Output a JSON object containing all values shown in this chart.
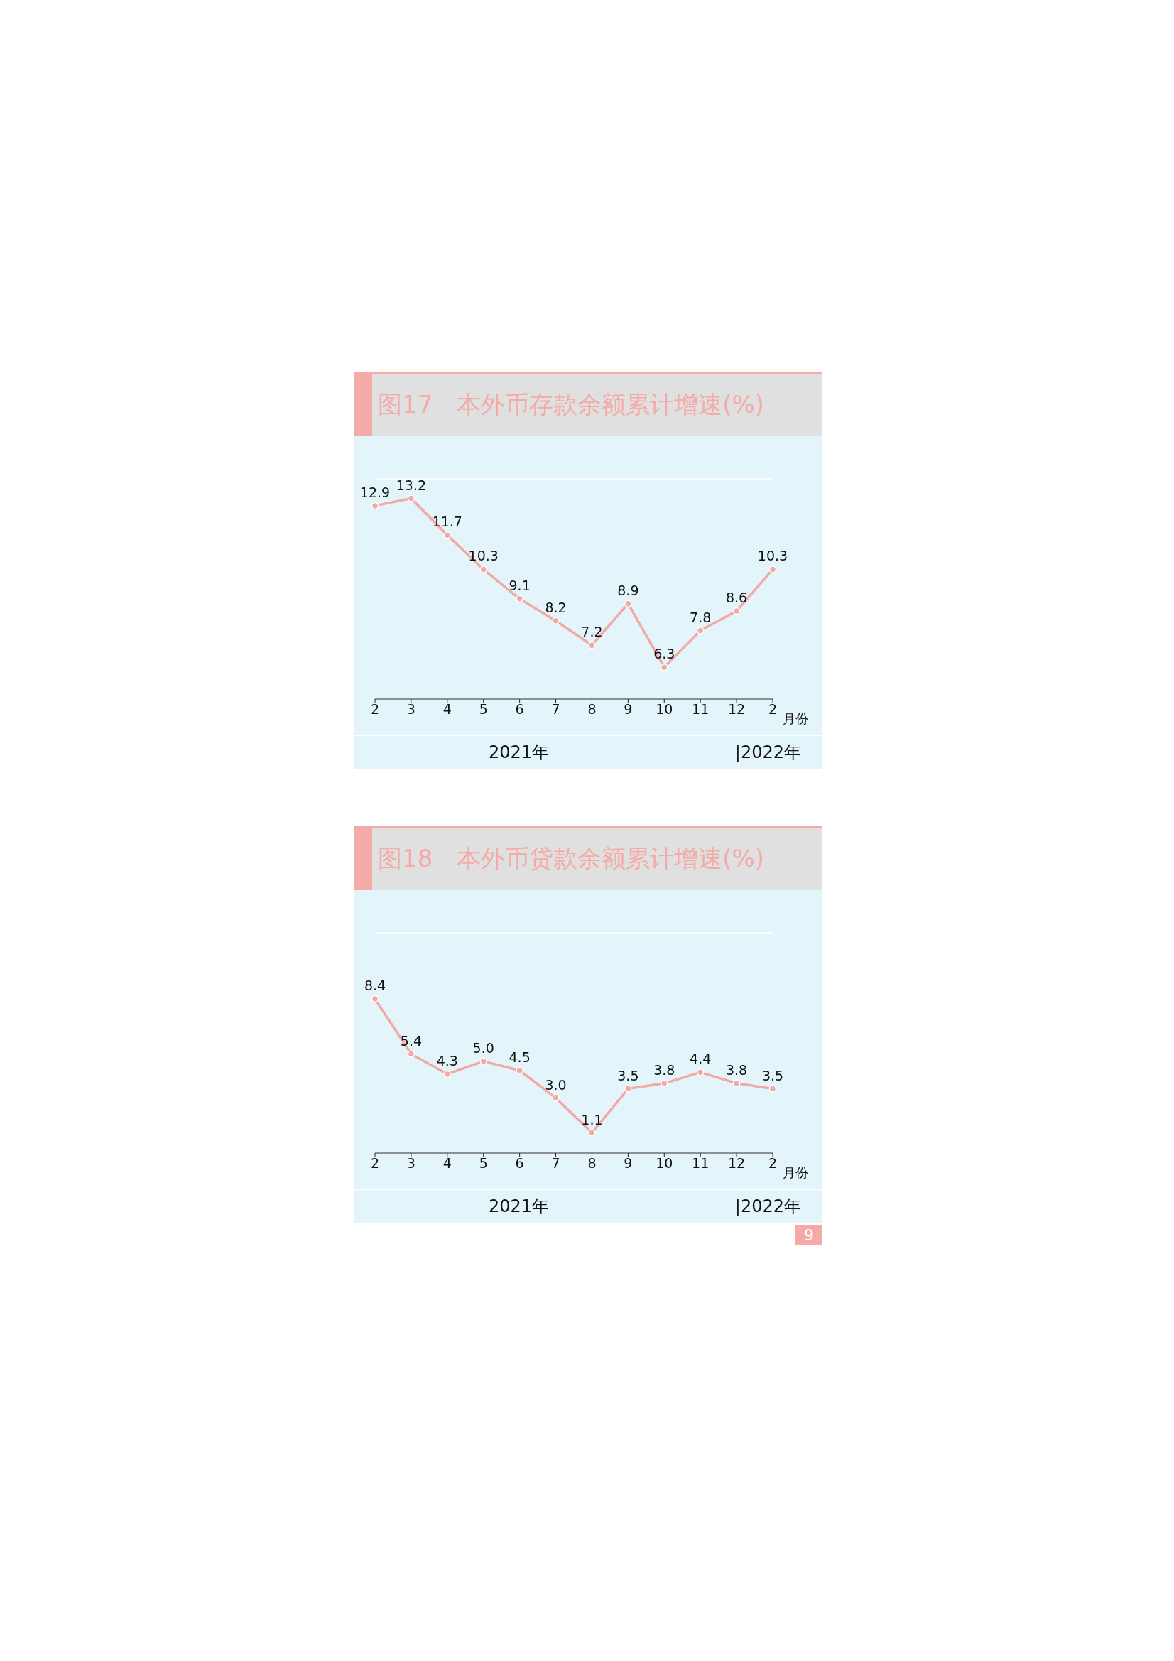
{
  "chart_data": [
    {
      "type": "line",
      "title": "图17　本外币存款余额累计增速(%)",
      "xlabel": "月份",
      "categories": [
        "2",
        "3",
        "4",
        "5",
        "6",
        "7",
        "8",
        "9",
        "10",
        "11",
        "12",
        "2"
      ],
      "series": [
        {
          "color": "#f2aaa6",
          "values": [
            12.9,
            13.2,
            11.7,
            10.3,
            9.1,
            8.2,
            7.2,
            8.9,
            6.3,
            7.8,
            8.6,
            10.3
          ],
          "value_labels": [
            "12.9",
            "13.2",
            "11.7",
            "10.3",
            "9.1",
            "8.2",
            "7.2",
            "8.9",
            "6.3",
            "7.8",
            "8.6",
            "10.3"
          ]
        }
      ],
      "ylim": [
        5,
        14
      ],
      "tick_labels": "x",
      "grid": "y",
      "marker": "circle",
      "line_style": "solid",
      "legend": false,
      "annotations": [
        "2021年",
        "|2022年"
      ]
    },
    {
      "type": "line",
      "title": "图18　本外币贷款余额累计增速(%)",
      "xlabel": "月份",
      "categories": [
        "2",
        "3",
        "4",
        "5",
        "6",
        "7",
        "8",
        "9",
        "10",
        "11",
        "12",
        "2"
      ],
      "series": [
        {
          "color": "#f2aaa6",
          "values": [
            8.4,
            5.4,
            4.3,
            5.0,
            4.5,
            3.0,
            1.1,
            3.5,
            3.8,
            4.4,
            3.8,
            3.5
          ],
          "value_labels": [
            "8.4",
            "5.4",
            "4.3",
            "5.0",
            "4.5",
            "3.0",
            "1.1",
            "3.5",
            "3.8",
            "4.4",
            "3.8",
            "3.5"
          ]
        }
      ],
      "ylim": [
        0,
        12
      ],
      "tick_labels": "x",
      "grid": "y",
      "marker": "circle",
      "line_style": "solid",
      "legend": false,
      "annotations": [
        "2021年",
        "|2022年",
        "9"
      ]
    }
  ]
}
